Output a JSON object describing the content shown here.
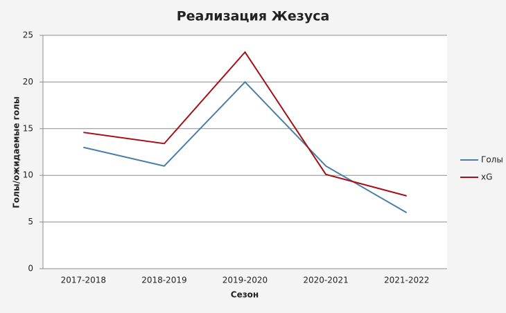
{
  "chart_data": {
    "type": "line",
    "title": "Реализация Жезуса",
    "x_label": "Сезон",
    "y_label": "Голы/ожидаемые голы",
    "categories": [
      "2017-2018",
      "2018-2019",
      "2019-2020",
      "2020-2021",
      "2021-2022"
    ],
    "series": [
      {
        "name": "Голы",
        "color": "#4a7ea8",
        "values": [
          13,
          11,
          20,
          11,
          6
        ]
      },
      {
        "name": "xG",
        "color": "#a50f15",
        "values": [
          14.6,
          13.4,
          23.2,
          10.1,
          7.8
        ]
      }
    ],
    "ylim": [
      0,
      25
    ],
    "yticks": [
      0,
      5,
      10,
      15,
      20,
      25
    ],
    "grid": true,
    "legend": "right"
  }
}
